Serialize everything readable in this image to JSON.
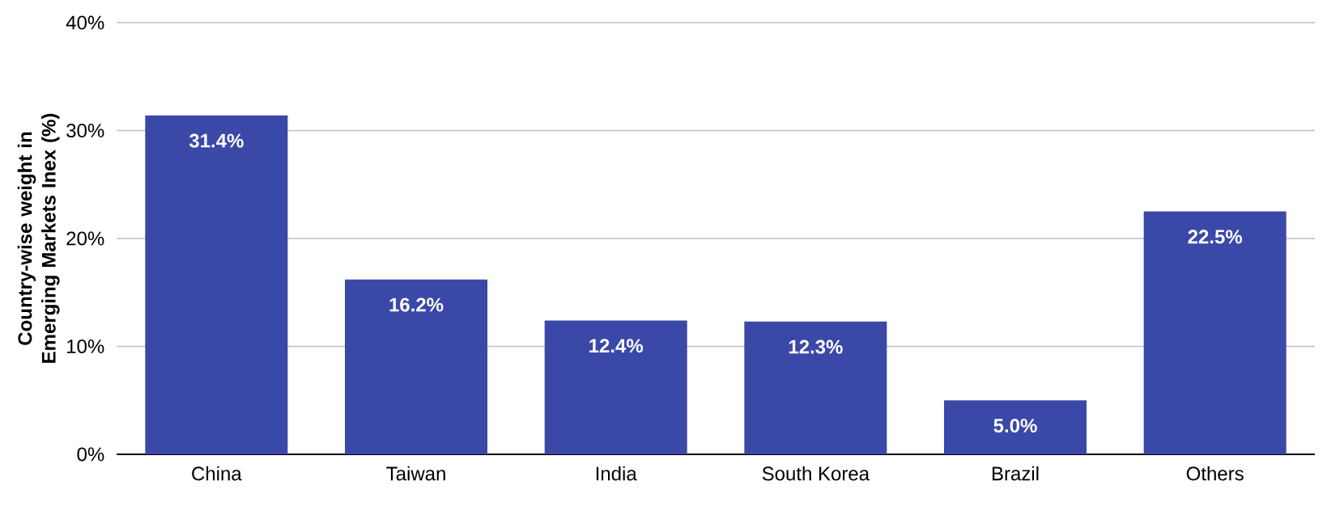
{
  "chart_data": {
    "type": "bar",
    "ylabel": "Country-wise weight in Emerging Markets Inex (%)",
    "categories": [
      "China",
      "Taiwan",
      "India",
      "South Korea",
      "Brazil",
      "Others"
    ],
    "values": [
      31.4,
      16.2,
      12.4,
      12.3,
      5.0,
      22.5
    ],
    "value_labels": [
      "31.4%",
      "16.2%",
      "12.4%",
      "12.3%",
      "5.0%",
      "22.5%"
    ],
    "color": "#3a48a8",
    "ylim": [
      0,
      40
    ],
    "yticks": [
      {
        "value": 0,
        "label": "0%"
      },
      {
        "value": 10,
        "label": "10%"
      },
      {
        "value": 20,
        "label": "20%"
      },
      {
        "value": 30,
        "label": "30%"
      },
      {
        "value": 40,
        "label": "40%"
      }
    ],
    "grid": "y"
  }
}
